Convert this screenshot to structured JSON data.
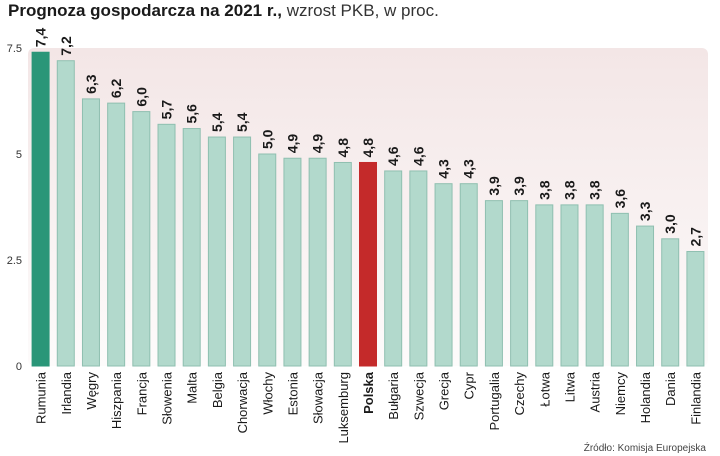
{
  "header": {
    "title_bold": "Prognoza gospodarcza na 2021 r.,",
    "title_rest": "wzrost PKB, w proc."
  },
  "footer": {
    "source": "Źródło: Komisja Europejska"
  },
  "colors": {
    "bar": "#b2d9cc",
    "bar_stroke": "#8fbfb0",
    "first_bar": "#2a9678",
    "highlight": "#c42a2a",
    "plot_bg_top": "#f3e6e6",
    "plot_bg_bottom": "#fdfbfb",
    "grid": "#d9c9c9"
  },
  "chart_data": {
    "type": "bar",
    "categories": [
      "Rumunia",
      "Irlandia",
      "Węgry",
      "Hiszpania",
      "Francja",
      "Słowenia",
      "Malta",
      "Belgia",
      "Chorwacja",
      "Włochy",
      "Estonia",
      "Słowacja",
      "Luksemburg",
      "Polska",
      "Bułgaria",
      "Szwecja",
      "Grecja",
      "Cypr",
      "Portugalia",
      "Czechy",
      "Łotwa",
      "Litwa",
      "Austria",
      "Niemcy",
      "Holandia",
      "Dania",
      "Finlandia"
    ],
    "values": [
      7.4,
      7.2,
      6.3,
      6.2,
      6.0,
      5.7,
      5.6,
      5.4,
      5.4,
      5.0,
      4.9,
      4.9,
      4.8,
      4.8,
      4.6,
      4.6,
      4.3,
      4.3,
      3.9,
      3.9,
      3.8,
      3.8,
      3.8,
      3.6,
      3.3,
      3.0,
      2.7
    ],
    "value_labels": [
      "7,4",
      "7,2",
      "6,3",
      "6,2",
      "6,0",
      "5,7",
      "5,6",
      "5,4",
      "5,4",
      "5,0",
      "4,9",
      "4,9",
      "4,8",
      "4,8",
      "4,6",
      "4,6",
      "4,3",
      "4,3",
      "3,9",
      "3,9",
      "3,8",
      "3,8",
      "3,8",
      "3,6",
      "3,3",
      "3,0",
      "2,7"
    ],
    "highlight_category": "Polska",
    "ylim": [
      0,
      7.5
    ],
    "yticks": [
      0,
      2.5,
      5,
      7.5
    ],
    "ytick_labels": [
      "0",
      "2.5",
      "5",
      "7.5"
    ],
    "grid": false,
    "legend": "none"
  }
}
